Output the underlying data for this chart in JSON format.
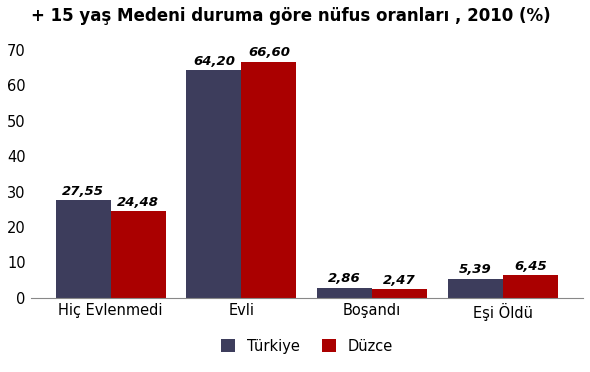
{
  "title": "+ 15 yaş Medeni duruma göre nüfus oranları , 2010 (%)",
  "categories": [
    "Hiç Evlenmedi",
    "Evli",
    "Boşandı",
    "Eşi Öldü"
  ],
  "turkiye_values": [
    27.55,
    64.2,
    2.86,
    5.39
  ],
  "duzce_values": [
    24.48,
    66.6,
    2.47,
    6.45
  ],
  "turkiye_label": "Türkiye",
  "duzce_label": "Düzce",
  "turkiye_color": "#3d3d5c",
  "duzce_color": "#aa0000",
  "ylim": [
    0,
    75
  ],
  "yticks": [
    0,
    10,
    20,
    30,
    40,
    50,
    60,
    70
  ],
  "bar_width": 0.42,
  "title_fontsize": 12,
  "tick_fontsize": 10.5,
  "value_fontsize": 9.5,
  "legend_fontsize": 10.5,
  "background_color": "#ffffff"
}
